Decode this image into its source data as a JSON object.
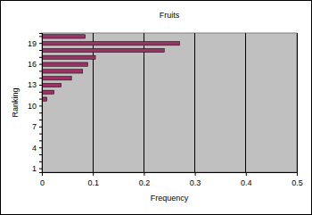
{
  "chart_data": {
    "type": "bar",
    "title": "Fruits",
    "orientation": "horizontal",
    "x_label": "Frequency",
    "y_label": "Ranking",
    "categories": [
      "1",
      null,
      null,
      "4",
      null,
      null,
      "7",
      null,
      null,
      "10",
      null,
      null,
      "13",
      null,
      null,
      "16",
      null,
      null,
      "19",
      null
    ],
    "values": [
      0,
      0,
      0,
      0,
      0,
      0,
      0,
      0,
      0,
      0,
      0.01,
      0.024,
      0.038,
      0.058,
      0.08,
      0.09,
      0.105,
      0.24,
      0.27,
      0.085
    ],
    "color": "#993366",
    "xlim": [
      0,
      0.5
    ],
    "xticks": [
      0,
      0.1,
      0.2,
      0.3,
      0.4,
      0.5
    ],
    "grid": true
  }
}
